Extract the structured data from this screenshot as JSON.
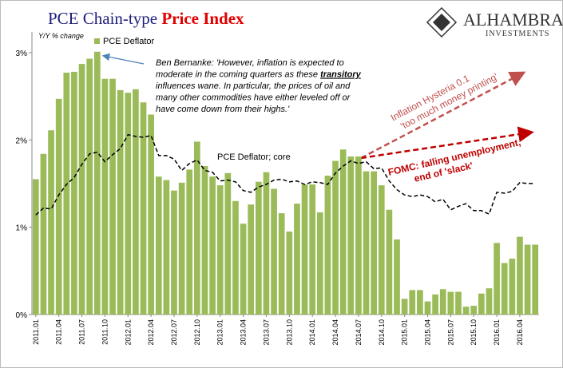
{
  "chart_data": {
    "type": "bar",
    "title": "PCE Chain-type",
    "title_emphasis": "Price Index",
    "y_label": "Y/Y % change",
    "logo": {
      "name": "ALHAMBRA",
      "sub": "INVESTMENTS"
    },
    "categories": [
      "2011.01",
      null,
      null,
      "2011.04",
      null,
      null,
      "2011.07",
      null,
      null,
      "2011.10",
      null,
      null,
      "2012.01",
      null,
      null,
      "2012.04",
      null,
      null,
      "2012.07",
      null,
      null,
      "2012.10",
      null,
      null,
      "2013.01",
      null,
      null,
      "2013.04",
      null,
      null,
      "2013.07",
      null,
      null,
      "2013.10",
      null,
      null,
      "2014.01",
      null,
      null,
      "2014.04",
      null,
      null,
      "2014.07",
      null,
      null,
      "2014.10",
      null,
      null,
      "2015.01",
      null,
      null,
      "2015.04",
      null,
      null,
      "2015.07",
      null,
      null,
      "2015.10",
      null,
      null,
      "2016.01",
      null,
      null,
      "2016.04",
      null,
      null
    ],
    "series": [
      {
        "name": "PCE Deflator",
        "type": "bar",
        "color": "#9bbb59",
        "values": [
          1.55,
          1.84,
          2.11,
          2.47,
          2.77,
          2.78,
          2.87,
          2.93,
          3.01,
          2.7,
          2.7,
          2.57,
          2.54,
          2.58,
          2.43,
          2.29,
          1.58,
          1.54,
          1.42,
          1.51,
          1.66,
          1.98,
          1.7,
          1.58,
          1.48,
          1.62,
          1.3,
          1.04,
          1.26,
          1.52,
          1.63,
          1.44,
          1.16,
          0.95,
          1.27,
          1.49,
          1.49,
          1.17,
          1.59,
          1.76,
          1.89,
          1.81,
          1.81,
          1.64,
          1.64,
          1.48,
          1.2,
          0.86,
          0.18,
          0.28,
          0.28,
          0.15,
          0.23,
          0.29,
          0.26,
          0.26,
          0.09,
          0.1,
          0.24,
          0.3,
          0.82,
          0.59,
          0.64,
          0.89,
          0.8,
          0.8
        ]
      },
      {
        "name": "PCE Deflator; core",
        "type": "line",
        "color": "#000000",
        "values": [
          1.14,
          1.22,
          1.21,
          1.37,
          1.49,
          1.57,
          1.72,
          1.84,
          1.86,
          1.75,
          1.83,
          1.9,
          2.06,
          2.04,
          2.03,
          2.05,
          1.82,
          1.82,
          1.78,
          1.65,
          1.73,
          1.77,
          1.65,
          1.63,
          1.53,
          1.54,
          1.52,
          1.42,
          1.4,
          1.46,
          1.49,
          1.54,
          1.55,
          1.52,
          1.53,
          1.49,
          1.52,
          1.51,
          1.49,
          1.62,
          1.7,
          1.76,
          1.73,
          1.75,
          1.67,
          1.68,
          1.53,
          1.43,
          1.37,
          1.35,
          1.37,
          1.35,
          1.29,
          1.32,
          1.2,
          1.24,
          1.27,
          1.19,
          1.19,
          1.15,
          1.4,
          1.39,
          1.41,
          1.51,
          1.5,
          1.5
        ]
      }
    ],
    "ylim": [
      0,
      3.2
    ],
    "yticks": [
      {
        "value": 0,
        "label": "0%"
      },
      {
        "value": 1,
        "label": "1%"
      },
      {
        "value": 2,
        "label": "2%"
      },
      {
        "value": 3,
        "label": "3%"
      }
    ],
    "legend": "top-left",
    "annotations": {
      "bernanke": {
        "lines": [
          "Ben Bernanke: 'However, inflation is expected to",
          "moderate in the coming quarters as these ",
          "influences wane. In particular, the prices of oil and",
          "many other commodities have either leveled off or",
          "have come down from their highs.'"
        ],
        "emphasis": "transitory"
      },
      "hysteria": [
        "Inflation Hysteria 0.1",
        "'too much money printing'"
      ],
      "fomc": [
        "FOMC: falling unemployment,",
        "end of 'slack'"
      ]
    }
  }
}
